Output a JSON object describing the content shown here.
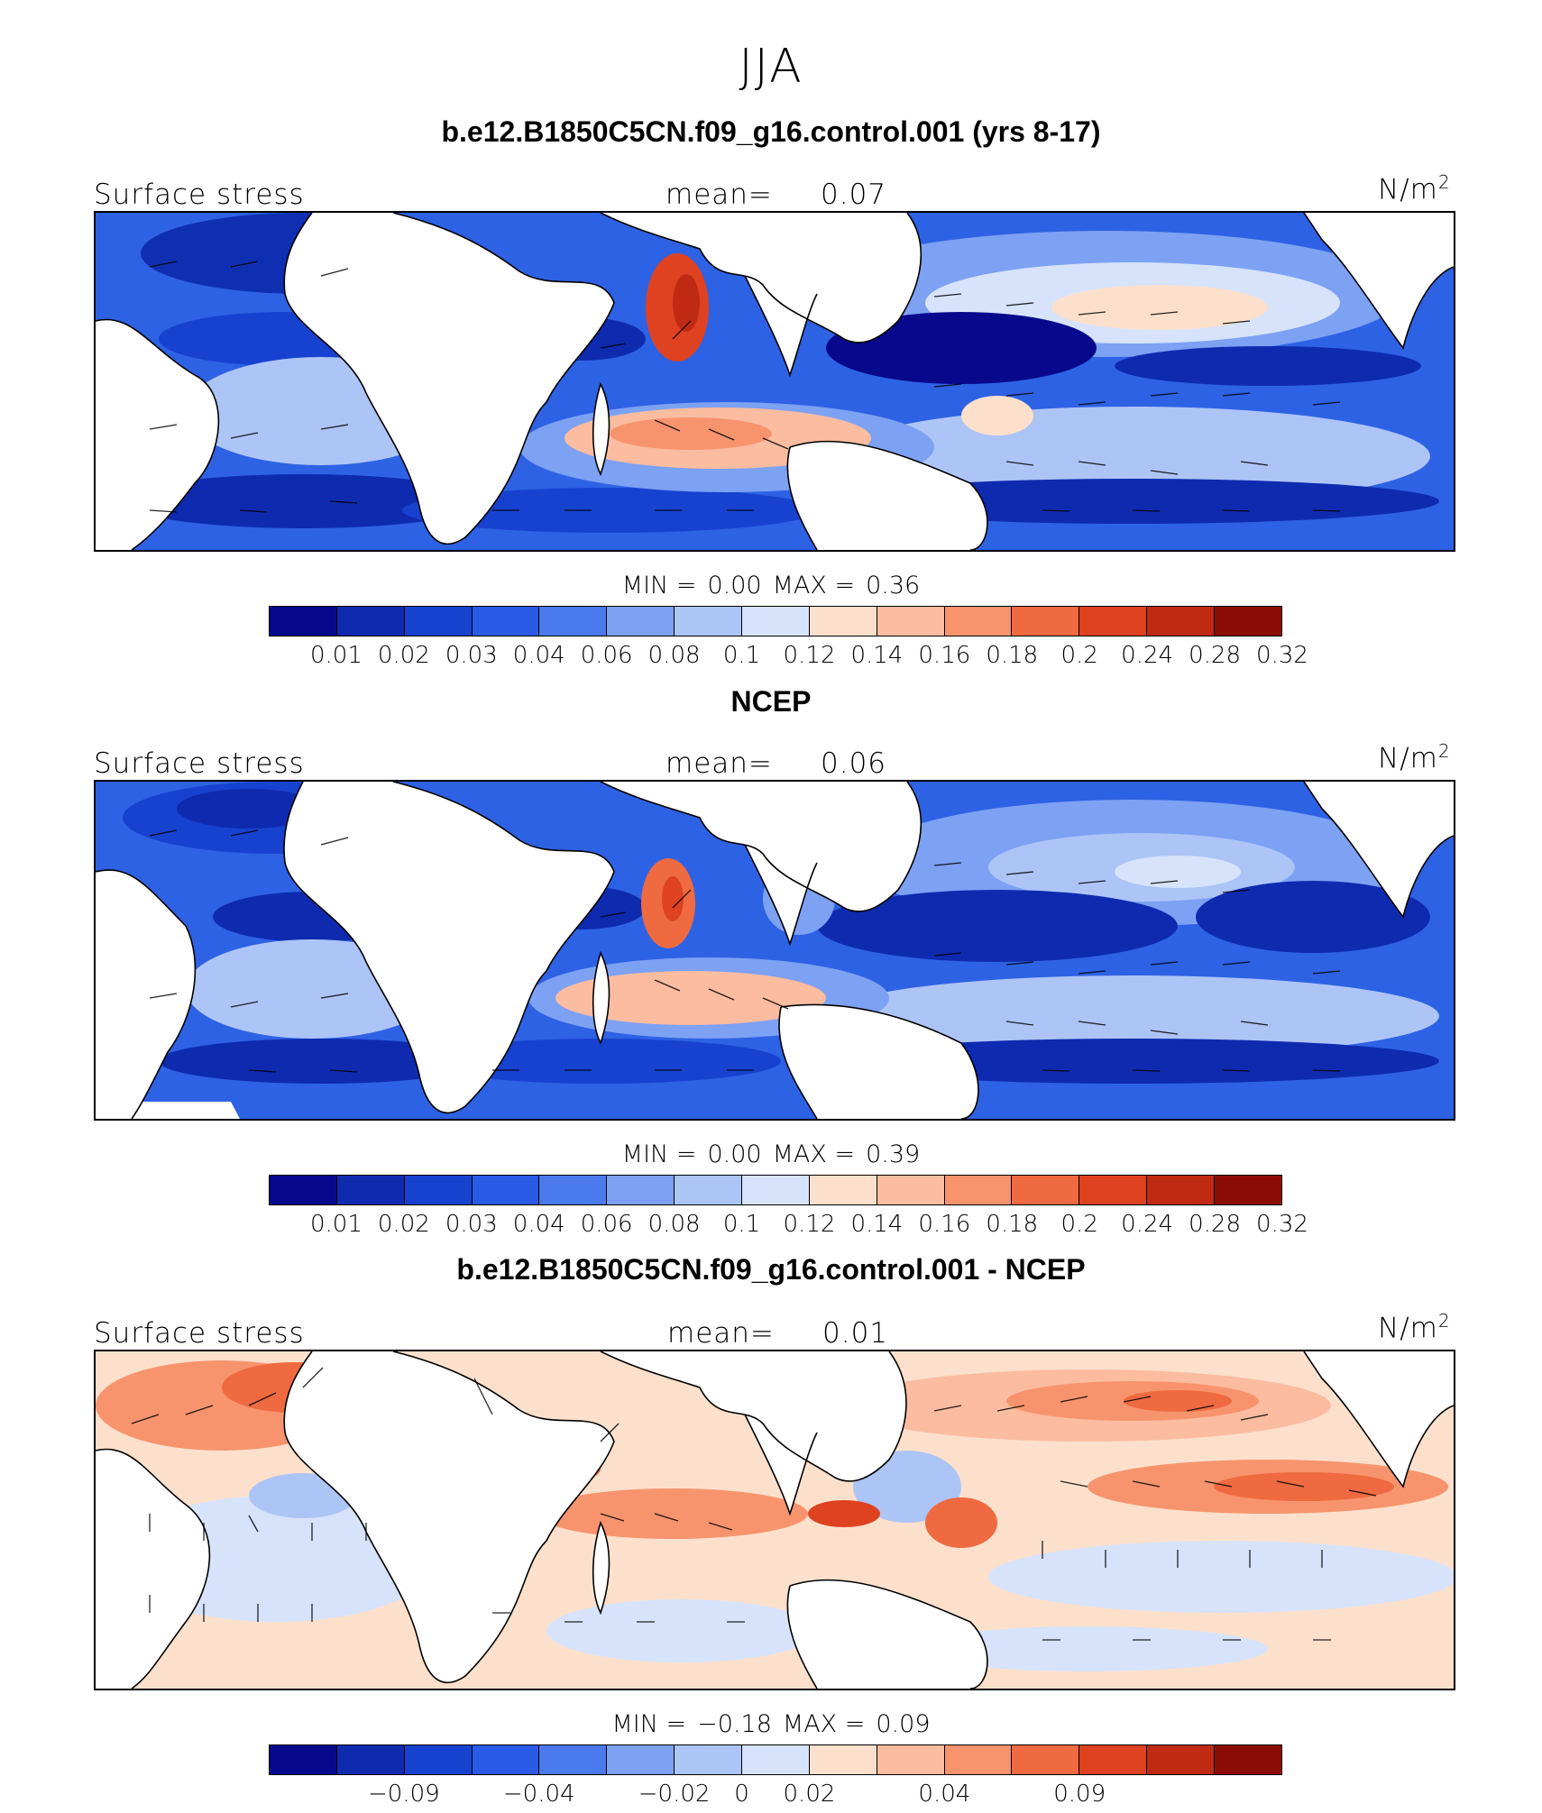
{
  "figure": {
    "season": "JJA",
    "colors": [
      "#08088c",
      "#0e2bb0",
      "#1742d0",
      "#2a5be6",
      "#4a7aee",
      "#7da1f3",
      "#adc4f7",
      "#d6e3fa",
      "#fde0cc",
      "#fbbca0",
      "#f7946e",
      "#ef6a40",
      "#de4221",
      "#c12a12",
      "#8c0d05"
    ]
  },
  "panels": [
    {
      "title": "b.e12.B1850C5CN.f09_g16.control.001 (yrs 8-17)",
      "field_label": "Surface stress",
      "mean_label": "mean=",
      "mean_value": "0.07",
      "unit": "N/m",
      "unit_sup": "2",
      "min_label": "MIN =",
      "min_value": "0.00",
      "max_label": "MAX =",
      "max_value": "0.36",
      "ticks": [
        "0.01",
        "0.02",
        "0.03",
        "0.04",
        "0.06",
        "0.08",
        "0.1",
        "0.12",
        "0.14",
        "0.16",
        "0.18",
        "0.2",
        "0.24",
        "0.28",
        "0.32"
      ]
    },
    {
      "title": "NCEP",
      "field_label": "Surface stress",
      "mean_label": "mean=",
      "mean_value": "0.06",
      "unit": "N/m",
      "unit_sup": "2",
      "min_label": "MIN =",
      "min_value": "0.00",
      "max_label": "MAX =",
      "max_value": "0.39",
      "ticks": [
        "0.01",
        "0.02",
        "0.03",
        "0.04",
        "0.06",
        "0.08",
        "0.1",
        "0.12",
        "0.14",
        "0.16",
        "0.18",
        "0.2",
        "0.24",
        "0.28",
        "0.32"
      ]
    },
    {
      "title": "b.e12.B1850C5CN.f09_g16.control.001 - NCEP",
      "field_label": "Surface stress",
      "mean_label": "mean=",
      "mean_value": "0.01",
      "unit": "N/m",
      "unit_sup": "2",
      "min_label": "MIN =",
      "min_value": "−0.18",
      "max_label": "MAX =",
      "max_value": "0.09",
      "ticks": [
        "−0.09",
        "−0.04",
        "−0.02",
        "0",
        "0.02",
        "0.04",
        "0.09"
      ]
    }
  ]
}
